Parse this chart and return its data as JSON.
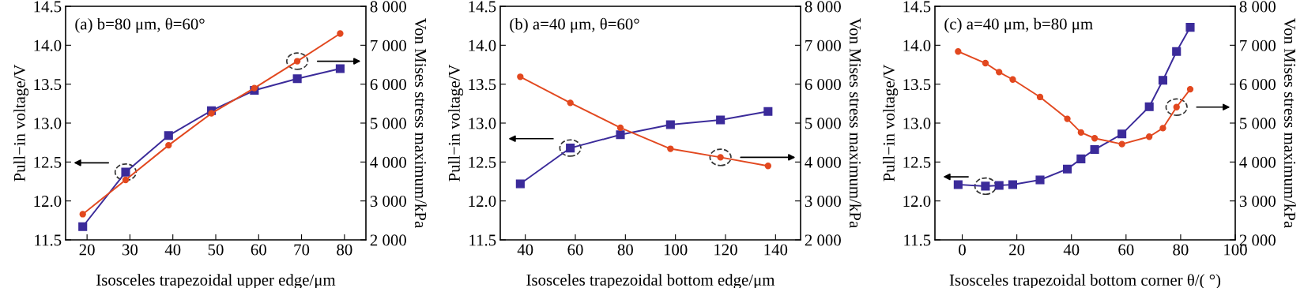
{
  "chart_data": [
    {
      "type": "line",
      "title": "(a) b=80 μm, θ=60°",
      "xlabel": "Isosceles trapezoidal upper edge/μm",
      "ylabel": "Pull−in voltage/V",
      "y2label": "Von Mises stress maximum/kPa",
      "x": [
        19,
        29,
        39,
        49,
        59,
        69,
        79
      ],
      "series": [
        {
          "color": "#3b2b9a",
          "marker": "square",
          "values": [
            11.67,
            12.37,
            12.84,
            13.16,
            13.42,
            13.57,
            13.7
          ]
        },
        {
          "color": "#e2481f",
          "marker": "circle",
          "axis": "y2",
          "values": [
            2660,
            3540,
            4430,
            5250,
            5900,
            6590,
            7300
          ]
        }
      ],
      "xlim": [
        15,
        85
      ],
      "xticks": [
        20,
        30,
        40,
        50,
        60,
        70,
        80
      ],
      "ylim": [
        11.5,
        14.5
      ],
      "yticks": [
        11.5,
        {
          "value": 12,
          "label": "12.0"
        },
        12.5,
        {
          "value": 13,
          "label": "13.0"
        },
        13.5,
        {
          "value": 14,
          "label": "14.0"
        },
        14.5
      ],
      "y2lim": [
        2000,
        8000
      ],
      "y2ticks": [
        {
          "value": 2000,
          "label": "2 000"
        },
        {
          "value": 3000,
          "label": "3 000"
        },
        {
          "value": 4000,
          "label": "4 000"
        },
        {
          "value": 5000,
          "label": "5 000"
        },
        {
          "value": 6000,
          "label": "6 000"
        },
        {
          "value": 7000,
          "label": "7 000"
        },
        {
          "value": 8000,
          "label": "8 000"
        }
      ],
      "grid": false,
      "legend": false,
      "line_style": "solid"
    },
    {
      "type": "line",
      "title": "(b) a=40 μm, θ=60°",
      "xlabel": "Isosceles trapezoidal bottom edge/μm",
      "ylabel": "Pull−in voltage/V",
      "y2label": "Von Mises stress maximum/kPa",
      "x": [
        38,
        58,
        78,
        98,
        118,
        137
      ],
      "series": [
        {
          "color": "#3b2b9a",
          "marker": "square",
          "values": [
            12.22,
            12.68,
            12.85,
            12.98,
            13.04,
            13.15
          ]
        },
        {
          "color": "#e2481f",
          "marker": "circle",
          "axis": "y2",
          "values": [
            6190,
            5520,
            4880,
            4340,
            4120,
            3900
          ]
        }
      ],
      "xlim": [
        30,
        150
      ],
      "xticks": [
        40,
        60,
        80,
        100,
        120,
        140
      ],
      "ylim": [
        11.5,
        14.5
      ],
      "yticks": [
        11.5,
        {
          "value": 12,
          "label": "12.0"
        },
        12.5,
        {
          "value": 13,
          "label": "13.0"
        },
        13.5,
        {
          "value": 14,
          "label": "14.0"
        },
        14.5
      ],
      "y2lim": [
        2000,
        8000
      ],
      "y2ticks": [
        {
          "value": 2000,
          "label": "2 000"
        },
        {
          "value": 3000,
          "label": "3 000"
        },
        {
          "value": 4000,
          "label": "4 000"
        },
        {
          "value": 5000,
          "label": "5 000"
        },
        {
          "value": 6000,
          "label": "6 000"
        },
        {
          "value": 7000,
          "label": "7 000"
        },
        {
          "value": 8000,
          "label": "8 000"
        }
      ],
      "grid": false,
      "legend": false,
      "line_style": "solid"
    },
    {
      "type": "line",
      "title": "(c) a=40 μm, b=80 μm",
      "xlabel": "Isosceles trapezoidal bottom corner θ/( °)",
      "ylabel": "Pull−in voltage/V",
      "y2label": "Von Mises stress maximum/kPa",
      "x": [
        -1.5,
        8.5,
        13.5,
        18.5,
        28.5,
        38.5,
        43.5,
        48.5,
        58.5,
        68.5,
        73.5,
        78.5,
        83.5
      ],
      "series": [
        {
          "color": "#3b2b9a",
          "marker": "square",
          "values": [
            12.21,
            12.19,
            12.2,
            12.21,
            12.27,
            12.41,
            12.54,
            12.66,
            12.86,
            13.21,
            13.55,
            13.92,
            14.23
          ]
        },
        {
          "color": "#e2481f",
          "marker": "circle",
          "axis": "y2",
          "values": [
            6840,
            6540,
            6310,
            6120,
            5670,
            5110,
            4760,
            4610,
            4460,
            4650,
            4870,
            5410,
            5870
          ]
        }
      ],
      "xlim": [
        -10,
        100
      ],
      "xticks": [
        0,
        20,
        40,
        60,
        80,
        100
      ],
      "ylim": [
        11.5,
        14.5
      ],
      "yticks": [
        11.5,
        {
          "value": 12,
          "label": "12.0"
        },
        12.5,
        {
          "value": 13,
          "label": "13.0"
        },
        13.5,
        {
          "value": 14,
          "label": "14.0"
        },
        14.5
      ],
      "y2lim": [
        2000,
        8000
      ],
      "y2ticks": [
        {
          "value": 2000,
          "label": "2 000"
        },
        {
          "value": 3000,
          "label": "3 000"
        },
        {
          "value": 4000,
          "label": "4 000"
        },
        {
          "value": 5000,
          "label": "5 000"
        },
        {
          "value": 6000,
          "label": "6 000"
        },
        {
          "value": 7000,
          "label": "7 000"
        },
        {
          "value": 8000,
          "label": "8 000"
        }
      ],
      "grid": false,
      "legend": false,
      "line_style": "solid"
    }
  ]
}
